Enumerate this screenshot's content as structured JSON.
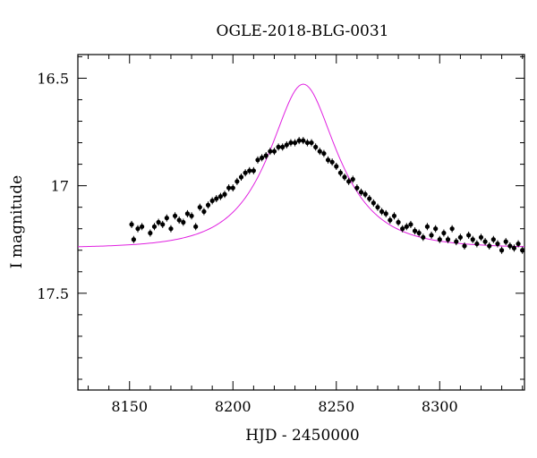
{
  "chart_data": {
    "type": "scatter",
    "title": "OGLE-2018-BLG-0031",
    "xlabel": "HJD - 2450000",
    "ylabel": "I magnitude",
    "xlim": [
      8125,
      8341
    ],
    "ylim": [
      17.95,
      16.39
    ],
    "y_inverted": true,
    "grid": false,
    "xticks": [
      {
        "value": 8150,
        "label": "8150"
      },
      {
        "value": 8200,
        "label": "8200"
      },
      {
        "value": 8250,
        "label": "8250"
      },
      {
        "value": 8300,
        "label": "8300"
      }
    ],
    "yticks": [
      {
        "value": 16.5,
        "label": "16.5"
      },
      {
        "value": 17.0,
        "label": "17"
      },
      {
        "value": 17.5,
        "label": "17.5"
      }
    ],
    "model": {
      "type": "line",
      "color": "#e020e0",
      "t0": 8234,
      "tE": 27,
      "u0": 0.55,
      "baseline_mag": 17.29
    },
    "series": [
      {
        "color": "#000000",
        "x": [
          8151,
          8152,
          8154,
          8156,
          8160,
          8162,
          8164,
          8166,
          8168,
          8170,
          8172,
          8174,
          8176,
          8178,
          8180,
          8182,
          8184,
          8186,
          8188,
          8190,
          8192,
          8194,
          8196,
          8198,
          8200,
          8202,
          8204,
          8206,
          8208,
          8210,
          8212,
          8214,
          8216,
          8218,
          8220,
          8222,
          8224,
          8226,
          8228,
          8230,
          8232,
          8234,
          8236,
          8238,
          8240,
          8242,
          8244,
          8246,
          8248,
          8250,
          8252,
          8254,
          8256,
          8258,
          8260,
          8262,
          8264,
          8266,
          8268,
          8270,
          8272,
          8274,
          8276,
          8278,
          8280,
          8282,
          8284,
          8286,
          8288,
          8290,
          8292,
          8294,
          8296,
          8298,
          8300,
          8302,
          8304,
          8306,
          8308,
          8310,
          8312,
          8314,
          8316,
          8318,
          8320,
          8322,
          8324,
          8326,
          8328,
          8330,
          8332,
          8334,
          8336,
          8338,
          8340
        ],
        "y": [
          17.18,
          17.25,
          17.2,
          17.19,
          17.22,
          17.19,
          17.17,
          17.18,
          17.15,
          17.2,
          17.14,
          17.16,
          17.17,
          17.13,
          17.14,
          17.19,
          17.1,
          17.12,
          17.09,
          17.07,
          17.06,
          17.05,
          17.04,
          17.01,
          17.01,
          16.98,
          16.96,
          16.94,
          16.93,
          16.93,
          16.88,
          16.87,
          16.86,
          16.84,
          16.84,
          16.82,
          16.82,
          16.81,
          16.8,
          16.8,
          16.79,
          16.79,
          16.8,
          16.8,
          16.82,
          16.84,
          16.85,
          16.88,
          16.89,
          16.91,
          16.94,
          16.96,
          16.98,
          16.97,
          17.01,
          17.03,
          17.04,
          17.06,
          17.08,
          17.1,
          17.12,
          17.13,
          17.16,
          17.14,
          17.17,
          17.2,
          17.19,
          17.18,
          17.21,
          17.22,
          17.24,
          17.19,
          17.23,
          17.2,
          17.25,
          17.22,
          17.25,
          17.2,
          17.26,
          17.24,
          17.28,
          17.23,
          17.25,
          17.27,
          17.24,
          17.26,
          17.28,
          17.25,
          17.27,
          17.3,
          17.26,
          17.28,
          17.29,
          17.27,
          17.3
        ]
      }
    ]
  }
}
